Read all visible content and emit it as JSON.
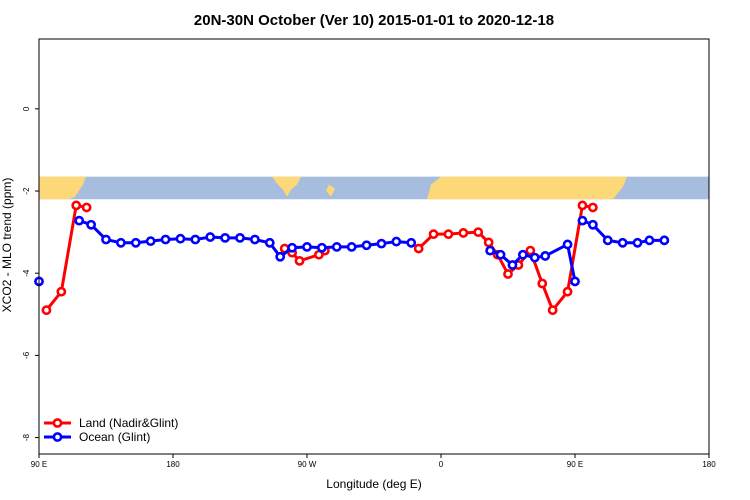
{
  "chart_data": {
    "type": "line",
    "title": "20N-30N October (Ver 10)   2015-01-01 to 2020-12-18",
    "xlabel": "Longitude (deg E)",
    "ylabel": "XCO2 - MLO trend (ppm)",
    "xlim": [
      90,
      540
    ],
    "ylim": [
      -8.4,
      1.7
    ],
    "x_ticks": [
      {
        "value": 90,
        "label": "90 E"
      },
      {
        "value": 180,
        "label": "180"
      },
      {
        "value": 270,
        "label": "90 W"
      },
      {
        "value": 360,
        "label": "0"
      },
      {
        "value": 450,
        "label": "90 E"
      },
      {
        "value": 540,
        "label": "180"
      }
    ],
    "y_ticks": [
      {
        "value": 0,
        "label": "0"
      },
      {
        "value": -2,
        "label": "-2"
      },
      {
        "value": -4,
        "label": "-4"
      },
      {
        "value": -6,
        "label": "-6"
      },
      {
        "value": -8,
        "label": "-8"
      }
    ],
    "map_strip": {
      "y_range": [
        -2.2,
        -1.65
      ],
      "ocean_color": "#a7bddd",
      "land_color": "#fcd878"
    },
    "legend": {
      "position": "bottom-left"
    },
    "series": [
      {
        "name": "Land (Nadir&Glint)",
        "color": "#ff0000",
        "segments": [
          [
            [
              95,
              -4.9
            ],
            [
              105,
              -4.45
            ],
            [
              115,
              -2.35
            ],
            [
              122,
              -2.4
            ]
          ],
          [
            [
              255,
              -3.4
            ],
            [
              260,
              -3.5
            ],
            [
              265,
              -3.7
            ],
            [
              278,
              -3.55
            ],
            [
              282,
              -3.45
            ]
          ],
          [
            [
              345,
              -3.4
            ],
            [
              355,
              -3.05
            ],
            [
              365,
              -3.05
            ],
            [
              375,
              -3.02
            ],
            [
              385,
              -3.0
            ],
            [
              392,
              -3.25
            ],
            [
              398,
              -3.55
            ],
            [
              405,
              -4.02
            ],
            [
              412,
              -3.8
            ],
            [
              420,
              -3.45
            ],
            [
              428,
              -4.25
            ],
            [
              435,
              -4.9
            ],
            [
              445,
              -4.45
            ],
            [
              455,
              -2.35
            ],
            [
              462,
              -2.4
            ]
          ]
        ]
      },
      {
        "name": "Ocean (Glint)",
        "color": "#0000ff",
        "segments": [
          [
            [
              90,
              -4.2
            ]
          ],
          [
            [
              117,
              -2.72
            ],
            [
              125,
              -2.82
            ],
            [
              135,
              -3.18
            ],
            [
              145,
              -3.26
            ],
            [
              155,
              -3.26
            ],
            [
              165,
              -3.22
            ],
            [
              175,
              -3.18
            ],
            [
              185,
              -3.16
            ],
            [
              195,
              -3.18
            ],
            [
              205,
              -3.12
            ],
            [
              215,
              -3.14
            ],
            [
              225,
              -3.14
            ],
            [
              235,
              -3.18
            ],
            [
              245,
              -3.26
            ],
            [
              252,
              -3.6
            ],
            [
              260,
              -3.38
            ],
            [
              270,
              -3.36
            ],
            [
              280,
              -3.38
            ],
            [
              290,
              -3.36
            ],
            [
              300,
              -3.36
            ],
            [
              310,
              -3.32
            ],
            [
              320,
              -3.28
            ],
            [
              330,
              -3.23
            ],
            [
              340,
              -3.26
            ]
          ],
          [
            [
              393,
              -3.45
            ],
            [
              400,
              -3.55
            ],
            [
              408,
              -3.8
            ],
            [
              415,
              -3.55
            ],
            [
              423,
              -3.62
            ],
            [
              430,
              -3.58
            ],
            [
              445,
              -3.3
            ],
            [
              450,
              -4.2
            ]
          ],
          [
            [
              455,
              -2.72
            ],
            [
              462,
              -2.82
            ],
            [
              472,
              -3.2
            ],
            [
              482,
              -3.26
            ],
            [
              492,
              -3.26
            ],
            [
              500,
              -3.2
            ],
            [
              510,
              -3.2
            ]
          ]
        ]
      }
    ]
  }
}
